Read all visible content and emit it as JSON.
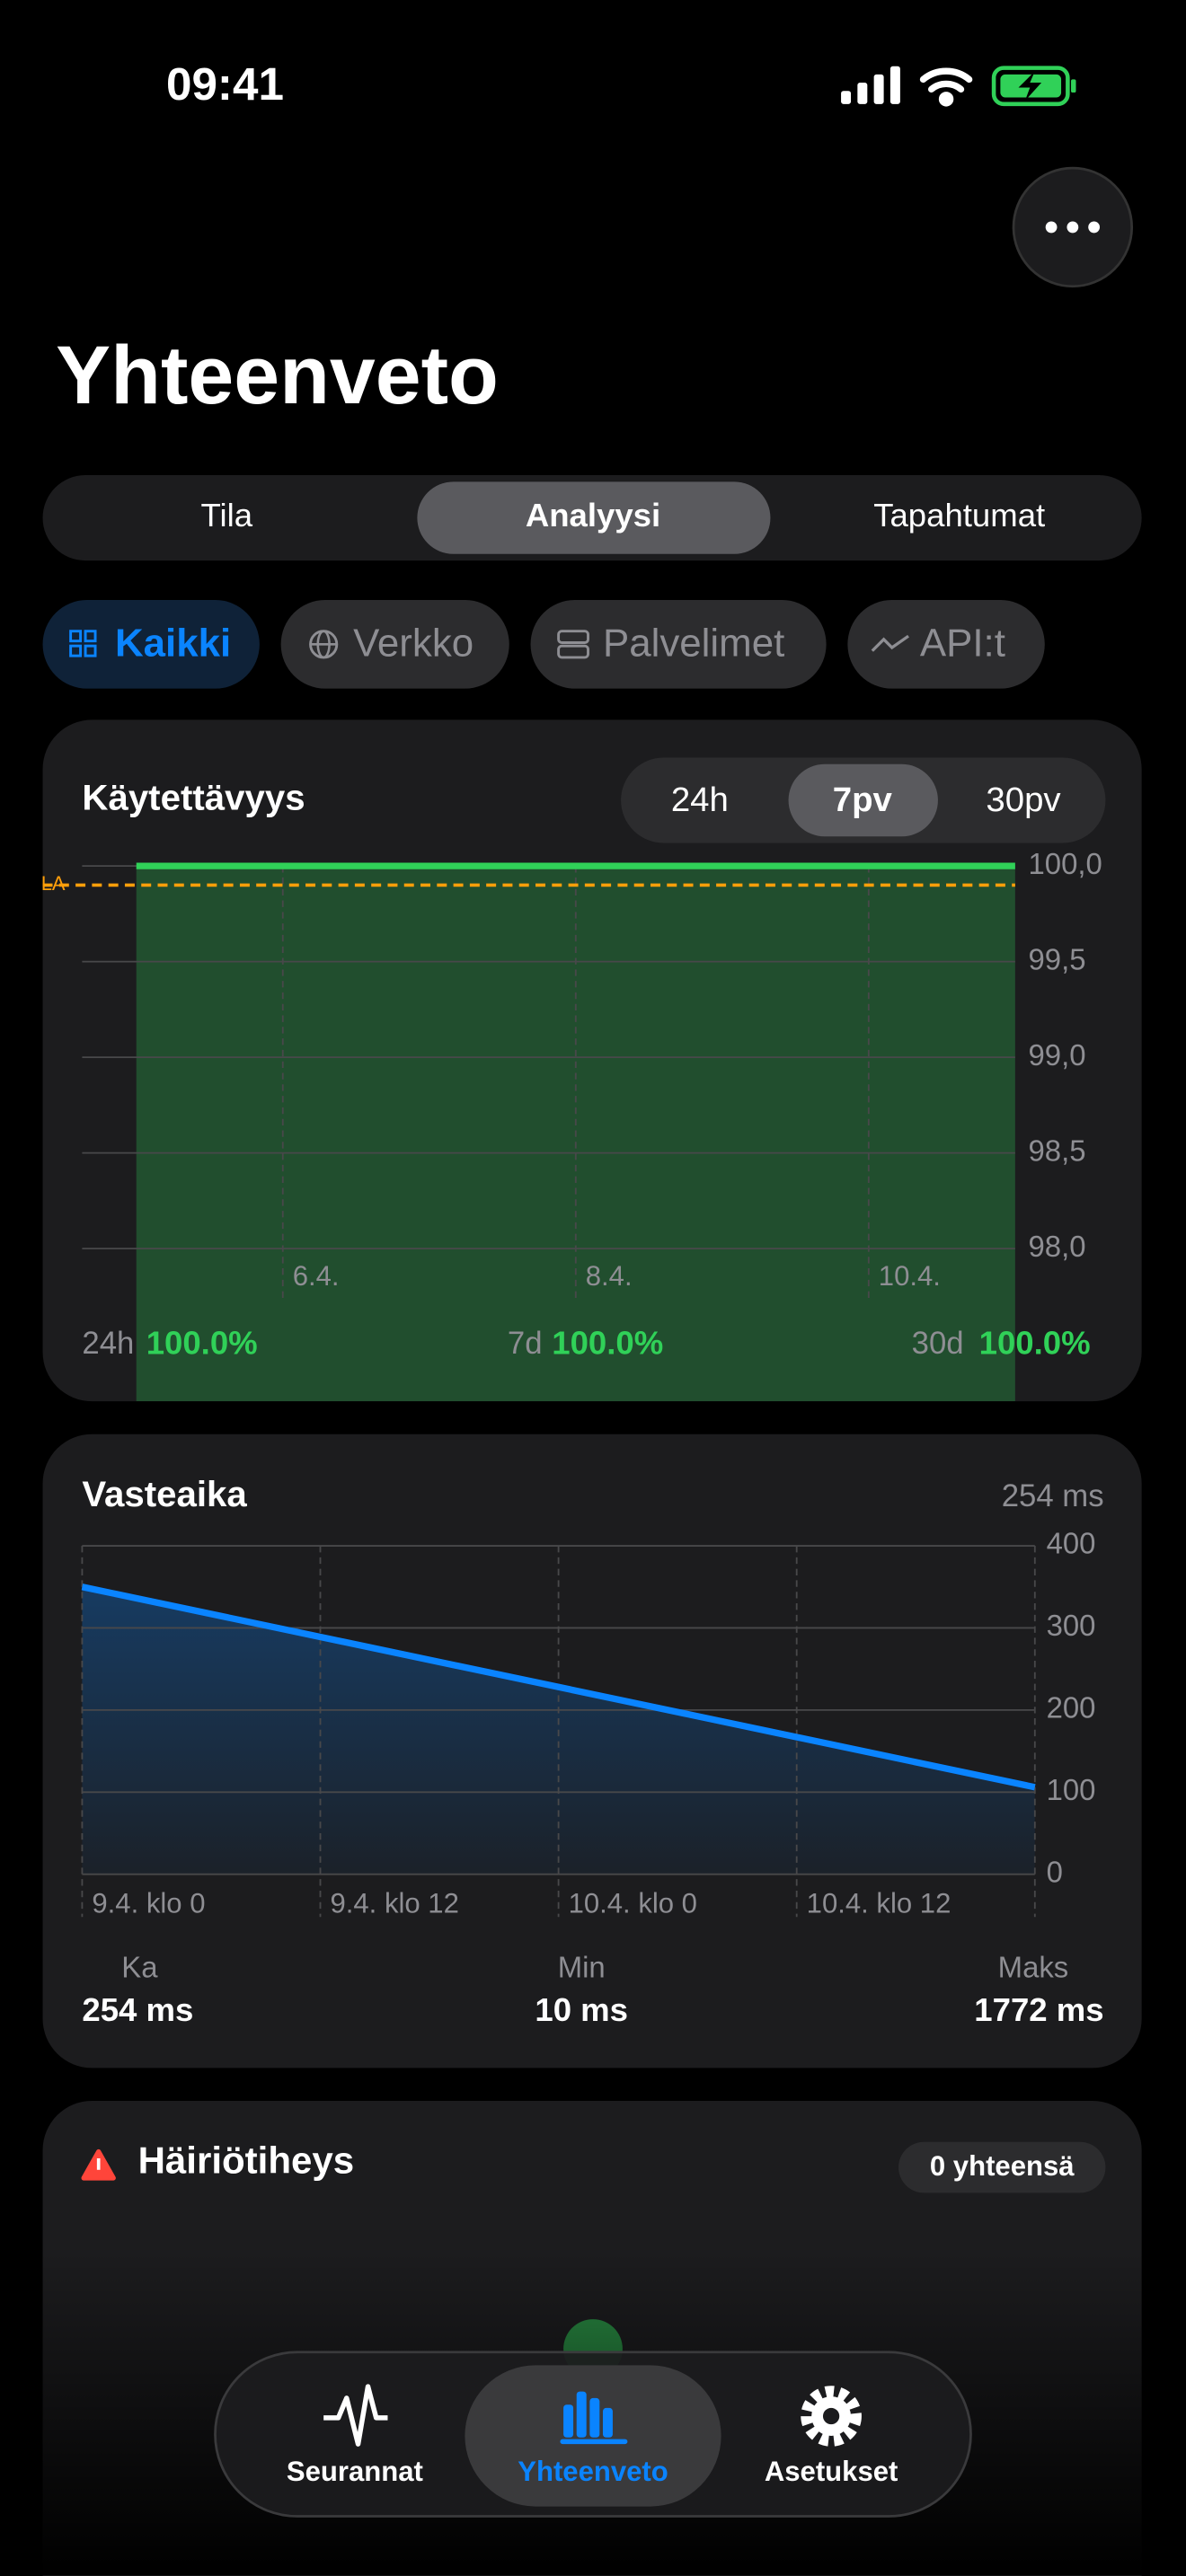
{
  "status_bar": {
    "time": "09:41"
  },
  "header": {
    "title": "Yhteenveto"
  },
  "segments": {
    "items": [
      "Tila",
      "Analyysi",
      "Tapahtumat"
    ],
    "selected": 1
  },
  "filters": {
    "items": [
      "Kaikki",
      "Verkko",
      "Palvelimet",
      "API:t"
    ],
    "selected": 0
  },
  "availability": {
    "title": "Käytettävyys",
    "ranges": [
      "24h",
      "7pv",
      "30pv"
    ],
    "selected_range": 1,
    "summary": [
      {
        "label": "24h",
        "value": "100.0%"
      },
      {
        "label": "7d",
        "value": "100.0%"
      },
      {
        "label": "30d",
        "value": "100.0%"
      }
    ]
  },
  "chart_data": [
    {
      "type": "area",
      "x": [
        5,
        6,
        7,
        8,
        9,
        10,
        11
      ],
      "values": [
        100,
        100,
        100,
        100,
        100,
        100,
        100
      ],
      "color": "#30d158",
      "xlim": [
        4.63,
        11
      ],
      "xticks": [
        {
          "value": 6,
          "label": "6.4."
        },
        {
          "value": 8,
          "label": "8.4."
        },
        {
          "value": 10,
          "label": "10.4."
        }
      ],
      "ylim": [
        98,
        100
      ],
      "yticks": [
        {
          "value": 98,
          "label": "98,0"
        },
        {
          "value": 98.5,
          "label": "98,5"
        },
        {
          "value": 99,
          "label": "99,0"
        },
        {
          "value": 99.5,
          "label": "99,5"
        },
        {
          "value": 100,
          "label": "100,0"
        }
      ],
      "sla": {
        "value": 99.9,
        "label": "SLA",
        "color": "#ff9f0a"
      },
      "grid": true
    },
    {
      "type": "area",
      "x": [
        0,
        48
      ],
      "values": [
        350,
        106
      ],
      "color": "#0a84ff",
      "xlim": [
        0,
        48
      ],
      "xticks": [
        {
          "value": 0,
          "label": "9.4. klo 0"
        },
        {
          "value": 12,
          "label": "9.4. klo 12"
        },
        {
          "value": 24,
          "label": "10.4. klo 0"
        },
        {
          "value": 36,
          "label": "10.4. klo 12"
        }
      ],
      "ylim": [
        0,
        400
      ],
      "yticks": [
        0,
        100,
        200,
        300,
        400
      ],
      "grid": true
    }
  ],
  "response_time": {
    "title": "Vasteaika",
    "current": "254 ms",
    "stats": [
      {
        "label": "Ka",
        "value": "254 ms"
      },
      {
        "label": "Min",
        "value": "10 ms"
      },
      {
        "label": "Maks",
        "value": "1772 ms"
      }
    ]
  },
  "incidents": {
    "title": "Häiriötiheys",
    "total": "0 yhteensä"
  },
  "tab_bar": {
    "items": [
      "Seurannat",
      "Yhteenveto",
      "Asetukset"
    ],
    "selected": 1
  }
}
